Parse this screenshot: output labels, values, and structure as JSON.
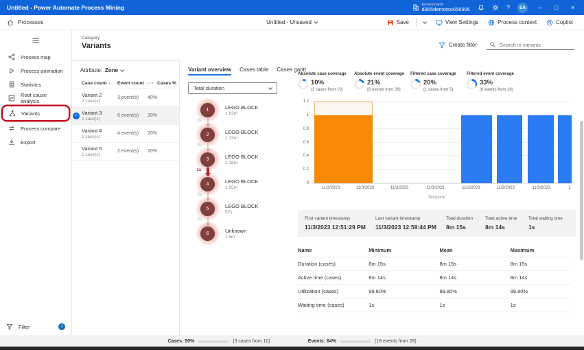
{
  "titlebar": {
    "title": "Untitled - Power Automate Process Mining",
    "environment_label": "Environment",
    "environment_name": "d365demotso656906",
    "avatar_initials": "SA"
  },
  "toolbar": {
    "processes_label": "Processes",
    "document_title": "Untitled - Unsaved",
    "save_label": "Save",
    "view_settings_label": "View Settings",
    "process_context_label": "Process context",
    "copilot_label": "Copilot"
  },
  "sidebar": {
    "items": [
      {
        "label": "Process map",
        "icon": "process-map-icon",
        "active": false,
        "annotated": false
      },
      {
        "label": "Process animation",
        "icon": "process-animation-icon",
        "active": false,
        "annotated": false
      },
      {
        "label": "Statistics",
        "icon": "statistics-icon",
        "active": false,
        "annotated": false
      },
      {
        "label": "Root cause analysis",
        "icon": "root-cause-icon",
        "active": false,
        "annotated": false
      },
      {
        "label": "Variants",
        "icon": "variants-icon",
        "active": true,
        "annotated": true
      },
      {
        "label": "Process compare",
        "icon": "process-compare-icon",
        "active": false,
        "annotated": false
      },
      {
        "label": "Export",
        "icon": "export-icon",
        "active": false,
        "annotated": false
      }
    ],
    "filter_label": "Filter",
    "filter_badge": "1"
  },
  "header": {
    "category_label": "Category",
    "title": "Variants",
    "create_filter_label": "Create filter",
    "search_placeholder": "Search in variants"
  },
  "variant_list": {
    "attribute_label": "Attribute:",
    "attribute_value": "Zone",
    "columns": [
      "Case count",
      "Event count",
      "Cases %"
    ],
    "rows": [
      {
        "name": "Variant 2",
        "cases": "2 case(s)",
        "events": "3 event(s)",
        "pct": "40%",
        "selected": false
      },
      {
        "name": "Variant 3",
        "cases": "1 case(s)",
        "events": "6 event(s)",
        "pct": "20%",
        "selected": true
      },
      {
        "name": "Variant 4",
        "cases": "1 case(s)",
        "events": "4 event(s)",
        "pct": "20%",
        "selected": false
      },
      {
        "name": "Variant 5",
        "cases": "1 case(s)",
        "events": "2 event(s)",
        "pct": "20%",
        "selected": false
      }
    ]
  },
  "overview": {
    "tabs": [
      {
        "label": "Variant overview",
        "active": true
      },
      {
        "label": "Cases table",
        "active": false
      },
      {
        "label": "Cases gantt",
        "active": false
      }
    ],
    "metric_dropdown": "Total duration",
    "nodes": [
      {
        "num": "1",
        "label": "LEGO BLOCK",
        "duration": "1.82m"
      },
      {
        "num": "2",
        "label": "LEGO BLOCK",
        "duration": "1.73m"
      },
      {
        "num": "3",
        "label": "LEGO BLOCK",
        "duration": "1.18m"
      },
      {
        "num": "4",
        "label": "LEGO BLOCK",
        "duration": "1.05m"
      },
      {
        "num": "5",
        "label": "LEGO BLOCK",
        "duration": "57s"
      },
      {
        "num": "6",
        "label": "Unknown",
        "duration": "1.5m"
      }
    ],
    "edges": [
      {
        "label": "0s",
        "highlight": false
      },
      {
        "label": "0s",
        "highlight": false
      },
      {
        "label": "1s",
        "highlight": true
      },
      {
        "label": "0s",
        "highlight": false
      },
      {
        "label": "0s",
        "highlight": false
      }
    ]
  },
  "coverage": [
    {
      "label": "Absolute case coverage",
      "value": "10%",
      "detail": "(1 cases from 10)",
      "pct": 10
    },
    {
      "label": "Absolute event coverage",
      "value": "21%",
      "detail": "(6 events from 28)",
      "pct": 21
    },
    {
      "label": "Filtered case coverage",
      "value": "20%",
      "detail": "(1 cases from 5)",
      "pct": 20
    },
    {
      "label": "Filtered event coverage",
      "value": "33%",
      "detail": "(6 events from 18)",
      "pct": 33
    }
  ],
  "chart_data": {
    "type": "bar",
    "title": "",
    "xlabel": "Temporal",
    "ylabel": "",
    "ylim": [
      0,
      1.2
    ],
    "y_ticks": [
      0,
      0.2,
      0.4,
      0.6,
      0.8,
      1,
      1.2
    ],
    "x_tick_labels": [
      "11/3/2023",
      "11/3/2023",
      "11/3/2023",
      "11/3/2023",
      "11/3/2023",
      "11/3/2023",
      "11/3/2023",
      "1"
    ],
    "x_tick_pos_pct": [
      7.4,
      20.6,
      33.8,
      47.6,
      61.3,
      74.6,
      88.3,
      99.2
    ],
    "bars": [
      {
        "value": 1,
        "color": "orange",
        "selected": true,
        "left_pct": 1,
        "width_pct": 22.5
      },
      {
        "value": 1,
        "color": "blue",
        "selected": false,
        "left_pct": 57.5,
        "width_pct": 12
      },
      {
        "value": 1,
        "color": "blue",
        "selected": false,
        "left_pct": 71.2,
        "width_pct": 9.7
      },
      {
        "value": 1,
        "color": "blue",
        "selected": false,
        "left_pct": 83,
        "width_pct": 10.2
      },
      {
        "value": 1,
        "color": "blue",
        "selected": false,
        "left_pct": 94.6,
        "width_pct": 5.4
      }
    ],
    "grid": true,
    "legend": false
  },
  "summary": [
    {
      "label": "First variant timestamp",
      "value": "11/3/2023 12:51:29 PM"
    },
    {
      "label": "Last variant timestamp",
      "value": "11/3/2023 12:59:44 PM"
    },
    {
      "label": "Total duration",
      "value": "8m 15s"
    },
    {
      "label": "Total active time",
      "value": "8m 14s"
    },
    {
      "label": "Total waiting time",
      "value": "1s"
    }
  ],
  "stats_table": {
    "columns": [
      "Name",
      "Minimum",
      "Mean",
      "Maximum"
    ],
    "rows": [
      [
        "Duration (cases)",
        "8m 15s",
        "8m 15s",
        "8m 15s"
      ],
      [
        "Active time (cases)",
        "8m 14s",
        "8m 14s",
        "8m 14s"
      ],
      [
        "Utilization (cases)",
        "99.80%",
        "99.80%",
        "99.80%"
      ],
      [
        "Waiting time (cases)",
        "1s",
        "1s",
        "1s"
      ]
    ]
  },
  "statusbar": {
    "cases_label": "Cases: 50%",
    "cases_detail": "(5 cases from 10)",
    "cases_pct": 50,
    "events_label": "Events: 64%",
    "events_detail": "(18 events from 28)",
    "events_pct": 64
  },
  "colors": {
    "titlebar": "#1164d8",
    "accent": "#1a6fe8",
    "bar_blue": "#2b7bf3",
    "bar_orange": "#f68a06",
    "save_icon": "#d83b01",
    "node_fill": "#424242",
    "edge_red": "#a4262c",
    "annotation_red": "#c50f1f"
  },
  "icons": {
    "more": "···",
    "sort_desc": "↓",
    "check": "✓",
    "minimize": "–",
    "maximize": "□",
    "close": "×",
    "help": "?"
  }
}
